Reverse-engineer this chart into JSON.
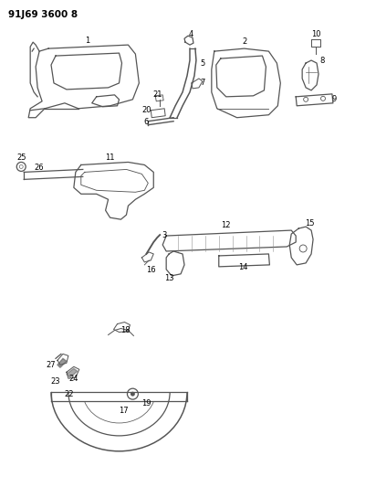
{
  "header": "91J69 3600 8",
  "bg_color": "#ffffff",
  "fig_width": 4.12,
  "fig_height": 5.33,
  "dpi": 100,
  "header_fontsize": 7.5,
  "line_color": "#555555",
  "text_color": "#000000",
  "label_fontsize": 6.0
}
